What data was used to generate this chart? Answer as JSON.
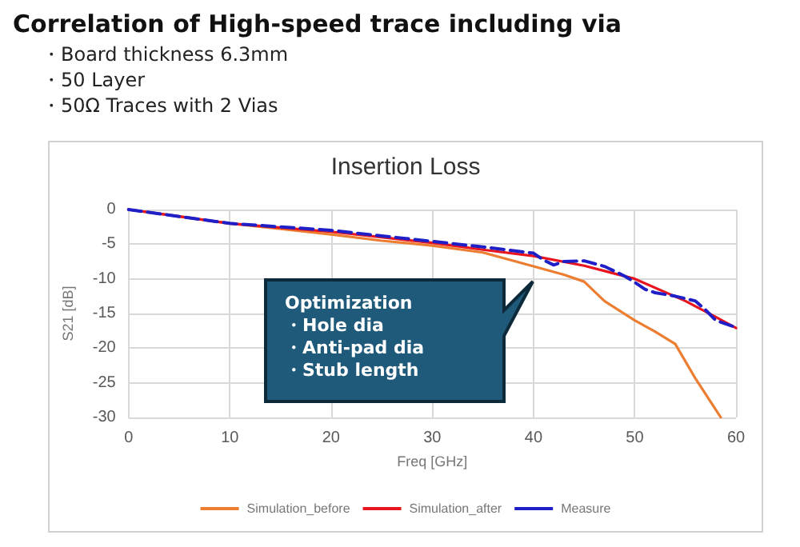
{
  "chart_data": {
    "type": "line",
    "title": "Insertion Loss",
    "xlabel": "Freq [GHz]",
    "ylabel": "S21 [dB]",
    "annotations": [
      "Correlation of High-speed trace including via",
      "・Board thickness 6.3mm",
      "・50 Layer",
      "・50Ω Traces with 2 Vias",
      "Optimization\n・Hole dia\n・Anti-pad dia\n・Stub length"
    ],
    "xlim": [
      0,
      60
    ],
    "xticks": [
      0,
      10,
      20,
      30,
      40,
      50,
      60
    ],
    "ylim": [
      -30,
      0
    ],
    "yticks": [
      -30,
      -25,
      -20,
      -15,
      -10,
      -5,
      0
    ],
    "grid": true,
    "legend": "bottom",
    "marker": "none",
    "series": [
      {
        "name": "Simulation_before",
        "color": "#ed7d31",
        "line_style": "solid",
        "x": [
          0,
          5,
          10,
          15,
          20,
          25,
          30,
          35,
          40,
          43,
          45,
          47,
          50,
          52,
          54,
          56,
          58.5
        ],
        "values": [
          0,
          -1,
          -2,
          -2.8,
          -3.6,
          -4.5,
          -5.2,
          -6.2,
          -8.2,
          -9.4,
          -10.4,
          -13.2,
          -16,
          -17.6,
          -19.4,
          -24.4,
          -30
        ]
      },
      {
        "name": "Simulation_after",
        "color": "#e8141e",
        "line_style": "solid",
        "x": [
          0,
          5,
          10,
          15,
          20,
          25,
          30,
          35,
          40,
          45,
          50,
          55,
          58,
          60
        ],
        "values": [
          0,
          -1,
          -2,
          -2.6,
          -3.2,
          -4,
          -4.8,
          -5.8,
          -6.7,
          -8.1,
          -10,
          -13.2,
          -15.5,
          -17.1
        ]
      },
      {
        "name": "Measure",
        "color": "#1f1fc8",
        "line_style": "dashed",
        "x": [
          0,
          5,
          10,
          15,
          20,
          25,
          30,
          35,
          40,
          41,
          42,
          43,
          45,
          47,
          49,
          50,
          51,
          52,
          54,
          56,
          57,
          58,
          60
        ],
        "values": [
          0,
          -1,
          -2,
          -2.5,
          -3,
          -3.8,
          -4.6,
          -5.4,
          -6.3,
          -7.3,
          -8,
          -7.5,
          -7.4,
          -8.2,
          -9.6,
          -10.5,
          -11.5,
          -12,
          -12.5,
          -13.2,
          -14.5,
          -16,
          -17
        ]
      }
    ]
  }
}
